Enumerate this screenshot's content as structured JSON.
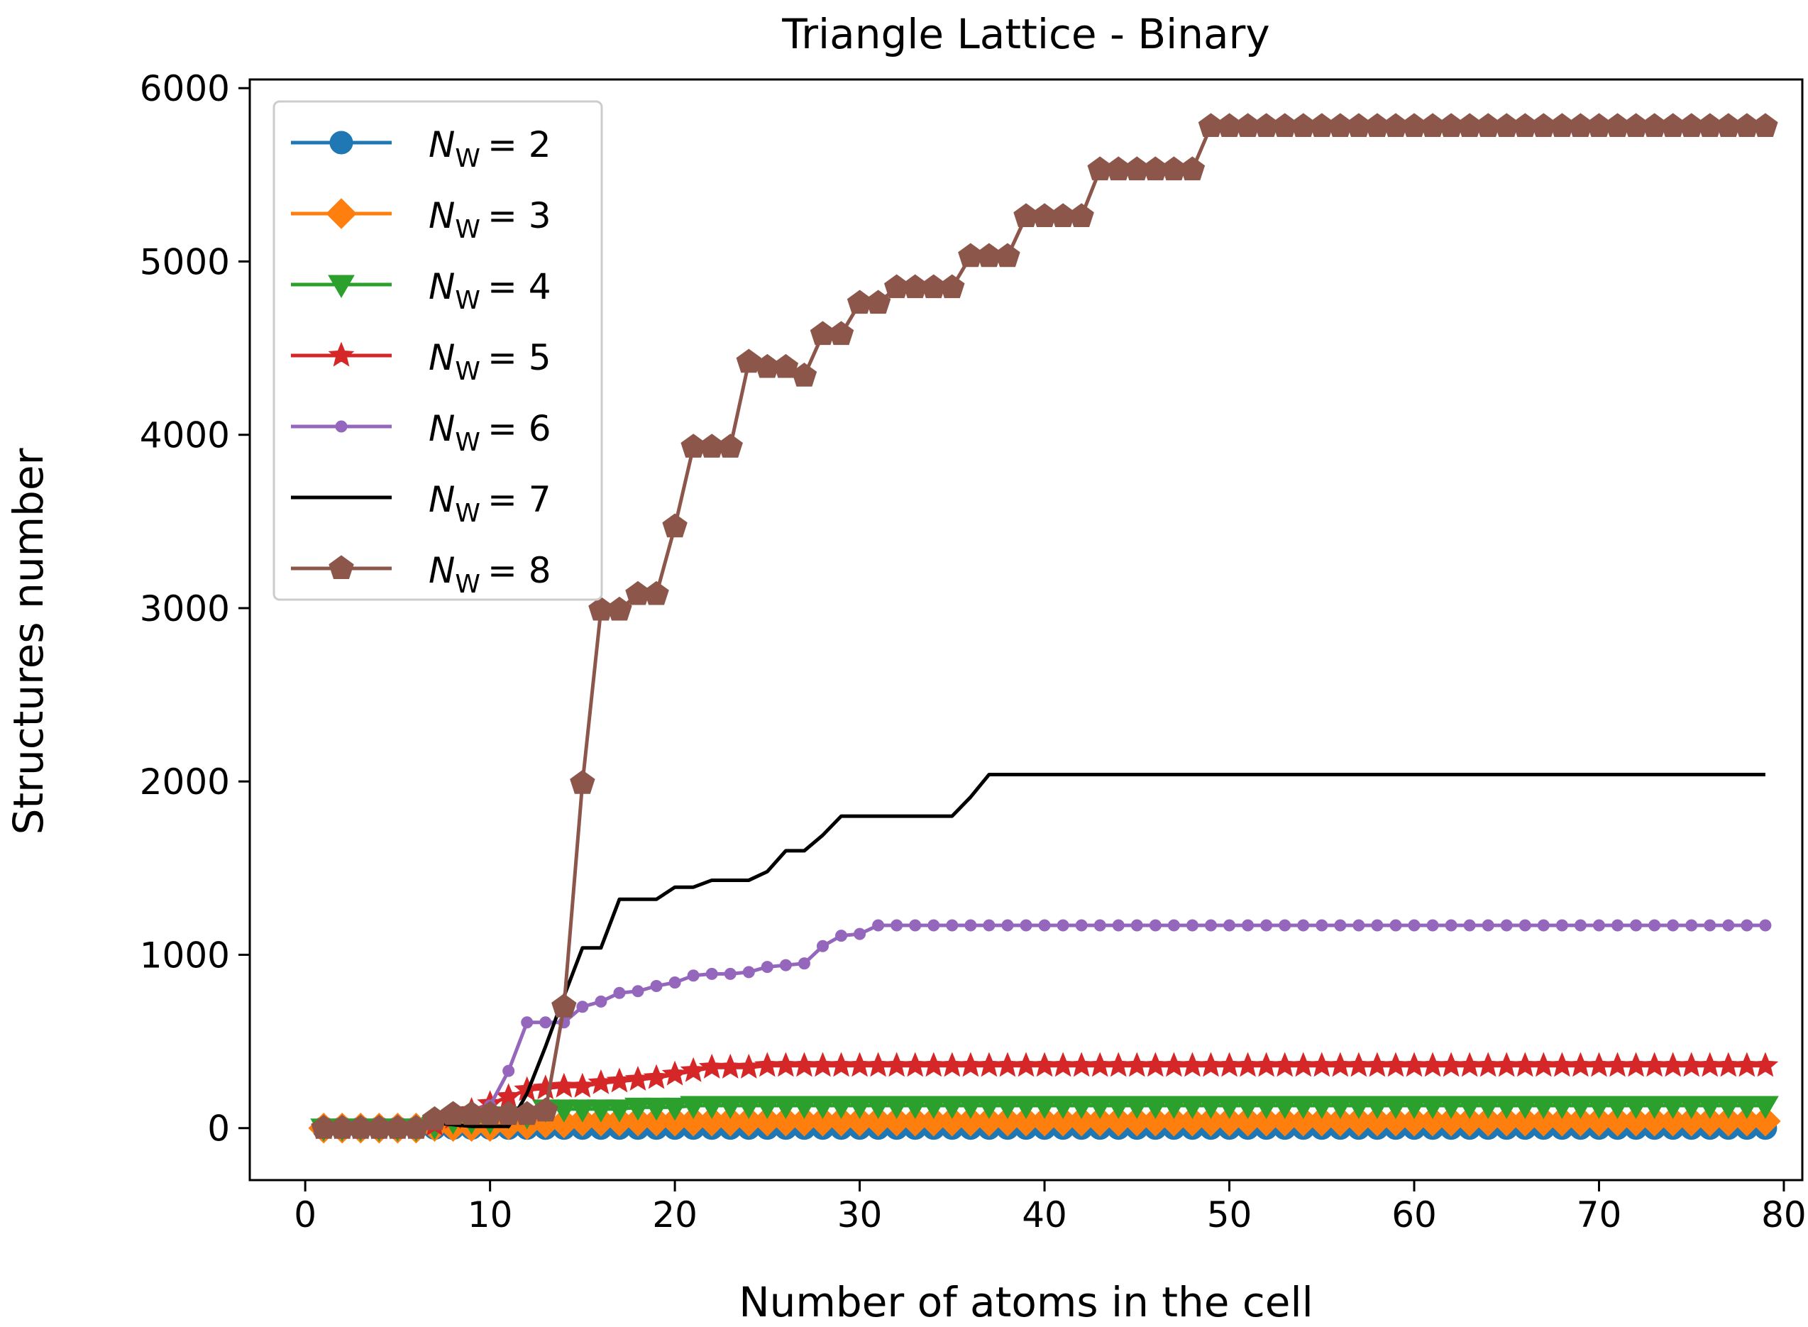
{
  "chart_data": {
    "type": "line",
    "title": "Triangle Lattice - Binary",
    "xlabel": "Number of atoms in the cell",
    "ylabel": "Structures number",
    "xlim": [
      -3,
      81
    ],
    "ylim": [
      -300,
      6050
    ],
    "xticks": [
      0,
      10,
      20,
      30,
      40,
      50,
      60,
      70,
      80
    ],
    "yticks": [
      0,
      1000,
      2000,
      3000,
      4000,
      5000,
      6000
    ],
    "grid": false,
    "legend_position": "top-left",
    "legend_prefix": "N",
    "legend_subscript": "W",
    "series": [
      {
        "name": "= 2",
        "color": "#1f77b4",
        "marker": "circle",
        "x_start": 1,
        "values": [
          0,
          0,
          0,
          0,
          0,
          0,
          0,
          0,
          0,
          0,
          0,
          0,
          0,
          0,
          0,
          0,
          0,
          0,
          0,
          0,
          0,
          0,
          0,
          0,
          0,
          0,
          0,
          0,
          0,
          0,
          0,
          0,
          0,
          0,
          0,
          0,
          0,
          0,
          0,
          0,
          0,
          0,
          0,
          0,
          0,
          0,
          0,
          0,
          0,
          0,
          0,
          0,
          0,
          0,
          0,
          0,
          0,
          0,
          0,
          0,
          0,
          0,
          0,
          0,
          0,
          0,
          0,
          0,
          0,
          0,
          0,
          0,
          0,
          0,
          0,
          0,
          0,
          0,
          0
        ]
      },
      {
        "name": "= 3",
        "color": "#ff7f0e",
        "marker": "diamond",
        "x_start": 1,
        "values": [
          0,
          0,
          0,
          0,
          0,
          0,
          10,
          10,
          10,
          10,
          20,
          20,
          30,
          30,
          40,
          40,
          40,
          40,
          40,
          40,
          40,
          40,
          40,
          40,
          40,
          40,
          40,
          40,
          40,
          40,
          40,
          40,
          40,
          40,
          40,
          40,
          40,
          40,
          40,
          40,
          40,
          40,
          40,
          40,
          40,
          40,
          40,
          40,
          40,
          40,
          40,
          40,
          40,
          40,
          40,
          40,
          40,
          40,
          40,
          40,
          40,
          40,
          40,
          40,
          40,
          40,
          40,
          40,
          40,
          40,
          40,
          40,
          40,
          40,
          40,
          40,
          40,
          40,
          40
        ]
      },
      {
        "name": "= 4",
        "color": "#2ca02c",
        "marker": "triangle-down",
        "x_start": 1,
        "values": [
          0,
          0,
          0,
          0,
          0,
          0,
          10,
          40,
          40,
          40,
          70,
          70,
          110,
          110,
          110,
          110,
          110,
          120,
          120,
          120,
          130,
          130,
          130,
          130,
          130,
          130,
          130,
          130,
          130,
          130,
          130,
          130,
          130,
          130,
          130,
          130,
          130,
          130,
          130,
          130,
          130,
          130,
          130,
          130,
          130,
          130,
          130,
          130,
          130,
          130,
          130,
          130,
          130,
          130,
          130,
          130,
          130,
          130,
          130,
          130,
          130,
          130,
          130,
          130,
          130,
          130,
          130,
          130,
          130,
          130,
          130,
          130,
          130,
          130,
          130,
          130,
          130,
          130,
          130
        ]
      },
      {
        "name": "= 5",
        "color": "#d62728",
        "marker": "star",
        "x_start": 1,
        "values": [
          0,
          0,
          0,
          0,
          0,
          0,
          20,
          60,
          100,
          140,
          180,
          220,
          230,
          240,
          240,
          260,
          270,
          280,
          290,
          310,
          330,
          350,
          350,
          350,
          360,
          360,
          360,
          360,
          360,
          360,
          360,
          360,
          360,
          360,
          360,
          360,
          360,
          360,
          360,
          360,
          360,
          360,
          360,
          360,
          360,
          360,
          360,
          360,
          360,
          360,
          360,
          360,
          360,
          360,
          360,
          360,
          360,
          360,
          360,
          360,
          360,
          360,
          360,
          360,
          360,
          360,
          360,
          360,
          360,
          360,
          360,
          360,
          360,
          360,
          360,
          360,
          360,
          360,
          360
        ]
      },
      {
        "name": "= 6",
        "color": "#9467bd",
        "marker": "dot",
        "x_start": 1,
        "values": [
          0,
          0,
          0,
          0,
          0,
          0,
          30,
          80,
          100,
          130,
          330,
          610,
          610,
          610,
          700,
          730,
          780,
          790,
          820,
          840,
          880,
          890,
          890,
          900,
          930,
          940,
          950,
          1050,
          1110,
          1120,
          1170,
          1170,
          1170,
          1170,
          1170,
          1170,
          1170,
          1170,
          1170,
          1170,
          1170,
          1170,
          1170,
          1170,
          1170,
          1170,
          1170,
          1170,
          1170,
          1170,
          1170,
          1170,
          1170,
          1170,
          1170,
          1170,
          1170,
          1170,
          1170,
          1170,
          1170,
          1170,
          1170,
          1170,
          1170,
          1170,
          1170,
          1170,
          1170,
          1170,
          1170,
          1170,
          1170,
          1170,
          1170,
          1170,
          1170,
          1170,
          1170
        ]
      },
      {
        "name": "= 7",
        "color": "#000000",
        "marker": "none",
        "x_start": 1,
        "values": [
          0,
          0,
          0,
          0,
          0,
          0,
          30,
          20,
          10,
          10,
          10,
          200,
          470,
          760,
          1040,
          1040,
          1320,
          1320,
          1320,
          1390,
          1390,
          1430,
          1430,
          1430,
          1480,
          1600,
          1600,
          1690,
          1800,
          1800,
          1800,
          1800,
          1800,
          1800,
          1800,
          1910,
          2040,
          2040,
          2040,
          2040,
          2040,
          2040,
          2040,
          2040,
          2040,
          2040,
          2040,
          2040,
          2040,
          2040,
          2040,
          2040,
          2040,
          2040,
          2040,
          2040,
          2040,
          2040,
          2040,
          2040,
          2040,
          2040,
          2040,
          2040,
          2040,
          2040,
          2040,
          2040,
          2040,
          2040,
          2040,
          2040,
          2040,
          2040,
          2040,
          2040,
          2040,
          2040,
          2040
        ]
      },
      {
        "name": "= 8",
        "color": "#8c564b",
        "marker": "pentagon",
        "x_start": 1,
        "values": [
          0,
          0,
          0,
          0,
          0,
          0,
          50,
          80,
          80,
          80,
          80,
          80,
          100,
          700,
          1990,
          2990,
          2990,
          3080,
          3080,
          3470,
          3930,
          3930,
          3930,
          4420,
          4390,
          4390,
          4340,
          4580,
          4580,
          4760,
          4760,
          4850,
          4850,
          4850,
          4850,
          5030,
          5030,
          5030,
          5260,
          5260,
          5260,
          5260,
          5530,
          5530,
          5530,
          5530,
          5530,
          5530,
          5780,
          5780,
          5780,
          5780,
          5780,
          5780,
          5780,
          5780,
          5780,
          5780,
          5780,
          5780,
          5780,
          5780,
          5780,
          5780,
          5780,
          5780,
          5780,
          5780,
          5780,
          5780,
          5780,
          5780,
          5780,
          5780,
          5780,
          5780,
          5780,
          5780,
          5780
        ]
      }
    ]
  }
}
